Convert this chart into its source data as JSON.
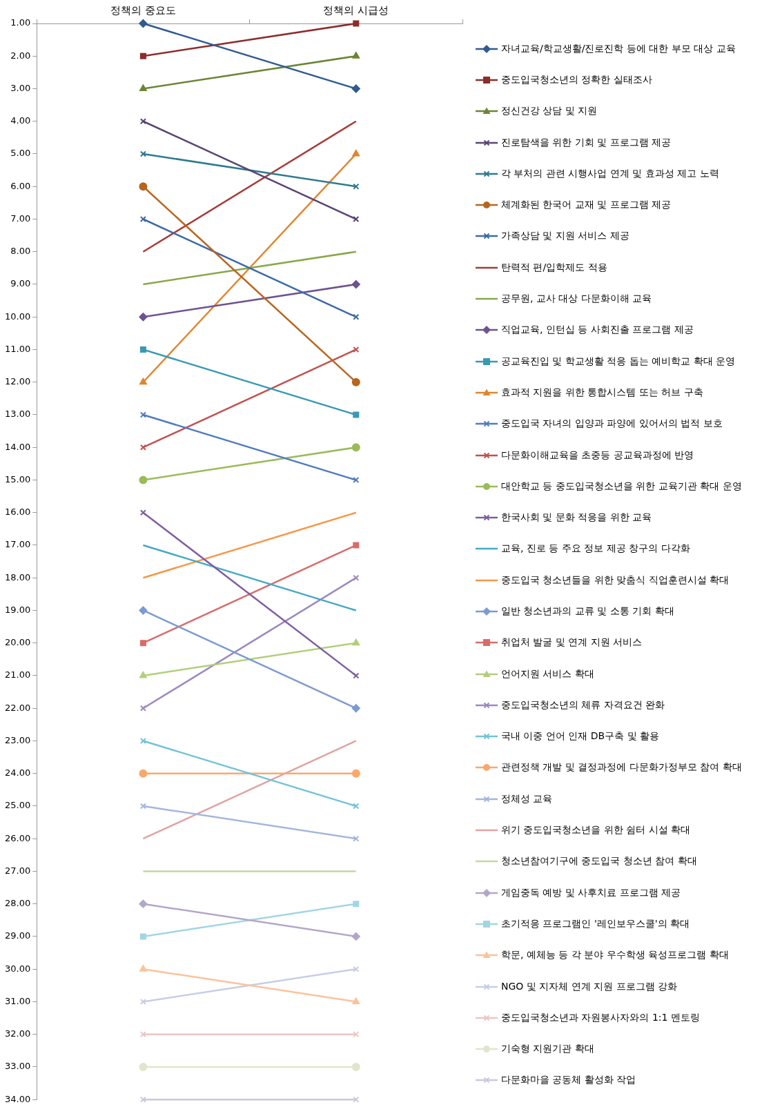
{
  "chart_data": {
    "type": "line",
    "categories": [
      "정책의 중요도",
      "정책의 시급성"
    ],
    "ylim": [
      34,
      1
    ],
    "yticks": [
      {
        "value": 1,
        "label": "1.00"
      },
      {
        "value": 2,
        "label": "2.00"
      },
      {
        "value": 3,
        "label": "3.00"
      },
      {
        "value": 4,
        "label": "4.00"
      },
      {
        "value": 5,
        "label": "5.00"
      },
      {
        "value": 6,
        "label": "6.00"
      },
      {
        "value": 7,
        "label": "7.00"
      },
      {
        "value": 8,
        "label": "8.00"
      },
      {
        "value": 9,
        "label": "9.00"
      },
      {
        "value": 10,
        "label": "10.00"
      },
      {
        "value": 11,
        "label": "11.00"
      },
      {
        "value": 12,
        "label": "12.00"
      },
      {
        "value": 13,
        "label": "13.00"
      },
      {
        "value": 14,
        "label": "14.00"
      },
      {
        "value": 15,
        "label": "15.00"
      },
      {
        "value": 16,
        "label": "16.00"
      },
      {
        "value": 17,
        "label": "17.00"
      },
      {
        "value": 18,
        "label": "18.00"
      },
      {
        "value": 19,
        "label": "19.00"
      },
      {
        "value": 20,
        "label": "20.00"
      },
      {
        "value": 21,
        "label": "21.00"
      },
      {
        "value": 22,
        "label": "22.00"
      },
      {
        "value": 23,
        "label": "23.00"
      },
      {
        "value": 24,
        "label": "24.00"
      },
      {
        "value": 25,
        "label": "25.00"
      },
      {
        "value": 26,
        "label": "26.00"
      },
      {
        "value": 27,
        "label": "27.00"
      },
      {
        "value": 28,
        "label": "28.00"
      },
      {
        "value": 29,
        "label": "29.00"
      },
      {
        "value": 30,
        "label": "30.00"
      },
      {
        "value": 31,
        "label": "31.00"
      },
      {
        "value": 32,
        "label": "32.00"
      },
      {
        "value": 33,
        "label": "33.00"
      },
      {
        "value": 34,
        "label": "34.00"
      }
    ],
    "grid": false,
    "legend": "right",
    "line_style": "solid",
    "series": [
      {
        "name": "자녀교육/학교생활/진로진학 등에 대한 부모 대상 교육",
        "color": "#2f5a92",
        "marker": "diamond",
        "values": [
          1,
          3
        ]
      },
      {
        "name": "중도입국청소년의 정확한 실태조사",
        "color": "#8c2d2b",
        "marker": "square",
        "values": [
          2,
          1
        ]
      },
      {
        "name": "정신건강 상담 및 지원",
        "color": "#6b8535",
        "marker": "triangle",
        "values": [
          3,
          2
        ]
      },
      {
        "name": "진로탐색을 위한 기회 및 프로그램 제공",
        "color": "#5a4473",
        "marker": "cross",
        "values": [
          4,
          7
        ]
      },
      {
        "name": "각 부처의 관련 시행사업 연계 및 효과성 제고 노력",
        "color": "#2d7a8e",
        "marker": "cross",
        "values": [
          5,
          6
        ]
      },
      {
        "name": "체계화된 한국어 교재 및 프로그램 제공",
        "color": "#b8651e",
        "marker": "circle",
        "values": [
          6,
          12
        ]
      },
      {
        "name": "가족상담 및 지원 서비스 제공",
        "color": "#3c6aa8",
        "marker": "cross",
        "values": [
          7,
          10
        ]
      },
      {
        "name": "탄력적 편/입학제도 적용",
        "color": "#a93a38",
        "marker": "none",
        "values": [
          8,
          4
        ]
      },
      {
        "name": "공무원, 교사 대상 다문화이해 교육",
        "color": "#88a848",
        "marker": "none",
        "values": [
          9,
          8
        ]
      },
      {
        "name": "직업교육, 인턴십 등 사회진출 프로그램 제공",
        "color": "#6e5291",
        "marker": "diamond",
        "values": [
          10,
          9
        ]
      },
      {
        "name": "공교육진입 및 학교생활 적응 돕는 예비학교 확대 운영",
        "color": "#3a99b2",
        "marker": "square",
        "values": [
          11,
          13
        ]
      },
      {
        "name": "효과적 지원을 위한 통합시스템 또는 허브 구축",
        "color": "#e0852e",
        "marker": "triangle",
        "values": [
          12,
          5
        ]
      },
      {
        "name": "중도입국 자녀의 입양과 파양에 있어서의 법적 보호",
        "color": "#4f7bc0",
        "marker": "cross",
        "values": [
          13,
          15
        ]
      },
      {
        "name": "다문화이해교육을 초중등 공교육과정에 반영",
        "color": "#c2504d",
        "marker": "cross",
        "values": [
          14,
          11
        ]
      },
      {
        "name": "대안학교 등 중도입국청소년을 위한 교육기관 확대 운영",
        "color": "#9bbb59",
        "marker": "circle",
        "values": [
          15,
          14
        ]
      },
      {
        "name": "한국사회 및 문화 적응을 위한 교육",
        "color": "#7e5ea0",
        "marker": "cross",
        "values": [
          16,
          21
        ]
      },
      {
        "name": "교육, 진로 등 주요 정보 제공 창구의 다각화",
        "color": "#46a9c4",
        "marker": "none",
        "values": [
          17,
          19
        ]
      },
      {
        "name": "중도입국 청소년들을 위한 맞춤식 직업훈련시설 확대",
        "color": "#f79646",
        "marker": "none",
        "values": [
          18,
          16
        ]
      },
      {
        "name": "일반 청소년과의 교류 및 소통 기회 확대",
        "color": "#7d9bd0",
        "marker": "diamond",
        "values": [
          19,
          22
        ]
      },
      {
        "name": "취업처 발굴 및 연계 지원 서비스",
        "color": "#d76c6a",
        "marker": "square",
        "values": [
          20,
          17
        ]
      },
      {
        "name": "언어지원 서비스 확대",
        "color": "#b1cf7a",
        "marker": "triangle",
        "values": [
          21,
          20
        ]
      },
      {
        "name": "중도입국청소년의 체류 자격요건 완화",
        "color": "#9c88c0",
        "marker": "cross",
        "values": [
          22,
          18
        ]
      },
      {
        "name": "국내 이중 언어 인재 DB구축 및 활용",
        "color": "#73c3d8",
        "marker": "cross",
        "values": [
          23,
          25
        ]
      },
      {
        "name": "관련정책 개발 및 결정과정에 다문화가정부모 참여 확대",
        "color": "#f9a86c",
        "marker": "circle",
        "values": [
          24,
          24
        ]
      },
      {
        "name": "정체성 교육",
        "color": "#a3b6dc",
        "marker": "cross",
        "values": [
          25,
          26
        ]
      },
      {
        "name": "위기 중도입국청소년을 위한 쉼터 시설 확대",
        "color": "#e0a3a2",
        "marker": "none",
        "values": [
          26,
          23
        ]
      },
      {
        "name": "청소년참여기구에 중도입국 청소년 참여 확대",
        "color": "#c5d8a2",
        "marker": "none",
        "values": [
          27,
          27
        ]
      },
      {
        "name": "게임중독 예방 및 사후치료 프로그램 제공",
        "color": "#b2a6ca",
        "marker": "diamond",
        "values": [
          28,
          29
        ]
      },
      {
        "name": "초기적응 프로그램인 '레인보우스쿨'의 확대",
        "color": "#a2d5e3",
        "marker": "square",
        "values": [
          29,
          28
        ]
      },
      {
        "name": "학문, 예체능 등 각 분야 우수학생 육성프로그램 확대",
        "color": "#fbc29b",
        "marker": "triangle",
        "values": [
          30,
          31
        ]
      },
      {
        "name": "NGO 및 지자체 연계 지원 프로그램 강화",
        "color": "#c6cde6",
        "marker": "cross",
        "values": [
          31,
          30
        ]
      },
      {
        "name": "중도입국청소년과 자원봉사자와의 1:1 멘토링",
        "color": "#ecc5c4",
        "marker": "cross",
        "values": [
          32,
          32
        ]
      },
      {
        "name": "기숙형 지원기관 확대",
        "color": "#dfe6cb",
        "marker": "circle",
        "values": [
          33,
          33
        ]
      },
      {
        "name": "다문화마을 공동체 활성화 작업",
        "color": "#cdc6e0",
        "marker": "cross",
        "values": [
          34,
          34
        ]
      }
    ]
  }
}
